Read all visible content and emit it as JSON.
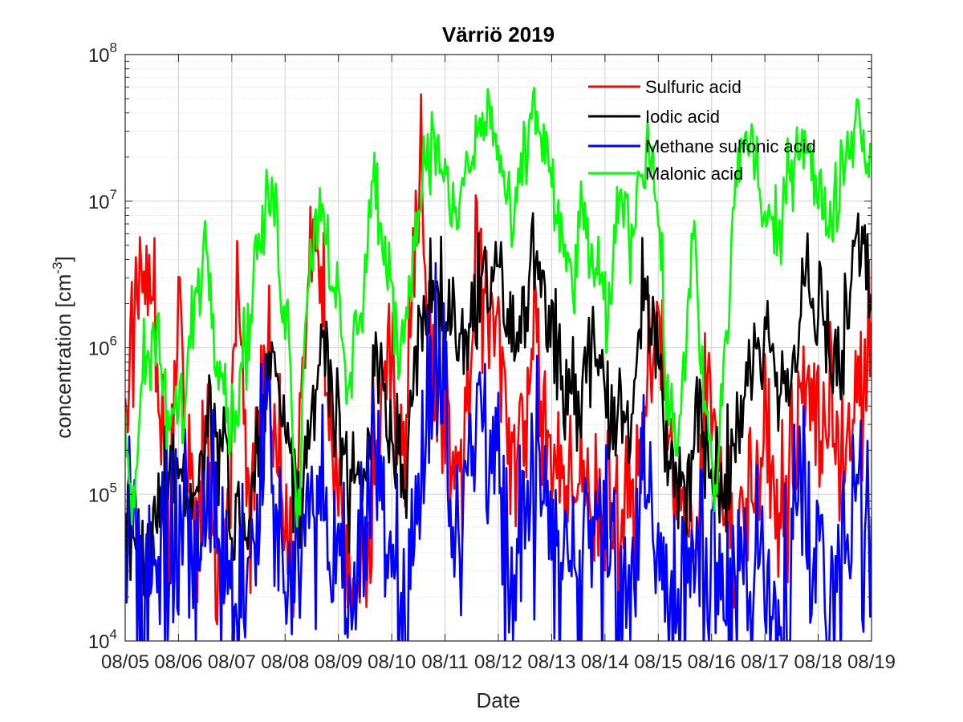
{
  "chart_data": {
    "type": "line",
    "title": "Värriö 2019",
    "xlabel": "Date",
    "ylabel": "concentration [cm",
    "ylabel_sup": "-3",
    "ylabel_end": "]",
    "yscale": "log",
    "ylim": [
      10000,
      100000000
    ],
    "xlim": [
      "08/05",
      "08/19"
    ],
    "x_ticks": [
      "08/05",
      "08/06",
      "08/07",
      "08/08",
      "08/09",
      "08/10",
      "08/11",
      "08/12",
      "08/13",
      "08/14",
      "08/15",
      "08/16",
      "08/17",
      "08/18",
      "08/19"
    ],
    "y_ticks": [
      {
        "base": "10",
        "exp": "4"
      },
      {
        "base": "10",
        "exp": "5"
      },
      {
        "base": "10",
        "exp": "6"
      },
      {
        "base": "10",
        "exp": "7"
      },
      {
        "base": "10",
        "exp": "8"
      }
    ],
    "grid": true,
    "legend_position": "top-right",
    "x_resolution_days": 0.025,
    "series": [
      {
        "name": "Sulfuric acid",
        "color": "#ff0000",
        "noise": 0.28,
        "anchors": [
          [
            "08/05 00:00",
            300000
          ],
          [
            "08/05 04:00",
            1500000
          ],
          [
            "08/05 08:00",
            4500000
          ],
          [
            "08/05 12:00",
            3000000
          ],
          [
            "08/05 16:00",
            400000
          ],
          [
            "08/05 20:00",
            80000
          ],
          [
            "08/06 00:00",
            2000000
          ],
          [
            "08/06 04:00",
            150000
          ],
          [
            "08/06 08:00",
            60000
          ],
          [
            "08/06 12:00",
            200000
          ],
          [
            "08/06 16:00",
            50000
          ],
          [
            "08/06 20:00",
            30000
          ],
          [
            "08/07 00:00",
            200000
          ],
          [
            "08/07 02:00",
            2500000
          ],
          [
            "08/07 04:00",
            1200000
          ],
          [
            "08/07 08:00",
            50000
          ],
          [
            "08/07 12:00",
            400000
          ],
          [
            "08/07 16:00",
            800000
          ],
          [
            "08/07 20:00",
            200000
          ],
          [
            "08/08 00:00",
            80000
          ],
          [
            "08/08 04:00",
            30000
          ],
          [
            "08/08 08:00",
            1000000
          ],
          [
            "08/08 12:00",
            4500000
          ],
          [
            "08/08 16:00",
            2000000
          ],
          [
            "08/08 20:00",
            300000
          ],
          [
            "08/09 00:00",
            100000
          ],
          [
            "08/09 06:00",
            20000
          ],
          [
            "08/09 12:00",
            40000
          ],
          [
            "08/09 18:00",
            300000
          ],
          [
            "08/10 00:00",
            500000
          ],
          [
            "08/10 06:00",
            200000
          ],
          [
            "08/10 10:00",
            3000000
          ],
          [
            "08/10 13:00",
            25000000
          ],
          [
            "08/10 16:00",
            2000000
          ],
          [
            "08/10 20:00",
            500000
          ],
          [
            "08/11 00:00",
            400000
          ],
          [
            "08/11 06:00",
            100000
          ],
          [
            "08/11 10:00",
            600000
          ],
          [
            "08/11 14:00",
            8000000
          ],
          [
            "08/11 18:00",
            1500000
          ],
          [
            "08/12 00:00",
            1200000
          ],
          [
            "08/12 04:00",
            300000
          ],
          [
            "08/12 10:00",
            250000
          ],
          [
            "08/12 16:00",
            1500000
          ],
          [
            "08/12 22:00",
            200000
          ],
          [
            "08/13 06:00",
            80000
          ],
          [
            "08/13 14:00",
            150000
          ],
          [
            "08/13 22:00",
            80000
          ],
          [
            "08/14 06:00",
            60000
          ],
          [
            "08/14 14:00",
            100000
          ],
          [
            "08/14 20:00",
            1000000
          ],
          [
            "08/15 00:00",
            2000000
          ],
          [
            "08/15 04:00",
            300000
          ],
          [
            "08/15 10:00",
            80000
          ],
          [
            "08/15 16:00",
            30000
          ],
          [
            "08/15 22:00",
            500000
          ],
          [
            "08/16 04:00",
            200000
          ],
          [
            "08/16 10:00",
            40000
          ],
          [
            "08/16 16:00",
            100000
          ],
          [
            "08/17 00:00",
            200000
          ],
          [
            "08/17 06:00",
            80000
          ],
          [
            "08/17 12:00",
            150000
          ],
          [
            "08/17 18:00",
            500000
          ],
          [
            "08/18 00:00",
            350000
          ],
          [
            "08/18 06:00",
            300000
          ],
          [
            "08/18 12:00",
            250000
          ],
          [
            "08/18 18:00",
            400000
          ],
          [
            "08/19 00:00",
            1000000
          ]
        ]
      },
      {
        "name": "Iodic acid",
        "color": "#000000",
        "noise": 0.2,
        "anchors": [
          [
            "08/05 00:00",
            80000
          ],
          [
            "08/05 08:00",
            30000
          ],
          [
            "08/05 16:00",
            100000
          ],
          [
            "08/06 00:00",
            150000
          ],
          [
            "08/06 08:00",
            80000
          ],
          [
            "08/06 14:00",
            400000
          ],
          [
            "08/06 20:00",
            200000
          ],
          [
            "08/07 02:00",
            50000
          ],
          [
            "08/07 08:00",
            80000
          ],
          [
            "08/07 14:00",
            300000
          ],
          [
            "08/07 18:00",
            1000000
          ],
          [
            "08/08 00:00",
            300000
          ],
          [
            "08/08 06:00",
            80000
          ],
          [
            "08/08 14:00",
            600000
          ],
          [
            "08/08 18:00",
            900000
          ],
          [
            "08/09 00:00",
            300000
          ],
          [
            "08/09 06:00",
            100000
          ],
          [
            "08/09 12:00",
            200000
          ],
          [
            "08/09 18:00",
            900000
          ],
          [
            "08/10 00:00",
            300000
          ],
          [
            "08/10 06:00",
            150000
          ],
          [
            "08/10 12:00",
            800000
          ],
          [
            "08/10 18:00",
            2200000
          ],
          [
            "08/11 00:00",
            1800000
          ],
          [
            "08/11 06:00",
            1300000
          ],
          [
            "08/11 12:00",
            1800000
          ],
          [
            "08/11 18:00",
            4000000
          ],
          [
            "08/12 00:00",
            3000000
          ],
          [
            "08/12 04:00",
            1500000
          ],
          [
            "08/12 10:00",
            1400000
          ],
          [
            "08/12 16:00",
            3500000
          ],
          [
            "08/13 00:00",
            1500000
          ],
          [
            "08/13 06:00",
            500000
          ],
          [
            "08/13 12:00",
            400000
          ],
          [
            "08/13 18:00",
            1000000
          ],
          [
            "08/14 00:00",
            600000
          ],
          [
            "08/14 06:00",
            300000
          ],
          [
            "08/14 12:00",
            500000
          ],
          [
            "08/14 18:00",
            2500000
          ],
          [
            "08/15 00:00",
            1000000
          ],
          [
            "08/15 06:00",
            150000
          ],
          [
            "08/15 12:00",
            100000
          ],
          [
            "08/15 18:00",
            300000
          ],
          [
            "08/16 00:00",
            150000
          ],
          [
            "08/16 06:00",
            100000
          ],
          [
            "08/16 12:00",
            300000
          ],
          [
            "08/16 18:00",
            1400000
          ],
          [
            "08/17 00:00",
            900000
          ],
          [
            "08/17 06:00",
            400000
          ],
          [
            "08/17 12:00",
            800000
          ],
          [
            "08/17 18:00",
            3000000
          ],
          [
            "08/18 00:00",
            1500000
          ],
          [
            "08/18 06:00",
            800000
          ],
          [
            "08/18 12:00",
            1200000
          ],
          [
            "08/18 18:00",
            4000000
          ],
          [
            "08/19 00:00",
            2000000
          ]
        ]
      },
      {
        "name": "Methane sulfonic acid",
        "color": "#0000ff",
        "noise": 0.38,
        "anchors": [
          [
            "08/05 00:00",
            60000
          ],
          [
            "08/05 08:00",
            20000
          ],
          [
            "08/05 16:00",
            30000
          ],
          [
            "08/06 00:00",
            40000
          ],
          [
            "08/06 08:00",
            30000
          ],
          [
            "08/06 14:00",
            100000
          ],
          [
            "08/06 20:00",
            40000
          ],
          [
            "08/07 04:00",
            15000
          ],
          [
            "08/07 10:00",
            60000
          ],
          [
            "08/07 16:00",
            250000
          ],
          [
            "08/07 22:00",
            60000
          ],
          [
            "08/08 04:00",
            20000
          ],
          [
            "08/08 10:00",
            80000
          ],
          [
            "08/08 16:00",
            150000
          ],
          [
            "08/08 22:00",
            40000
          ],
          [
            "08/09 04:00",
            20000
          ],
          [
            "08/09 10:00",
            40000
          ],
          [
            "08/09 18:00",
            150000
          ],
          [
            "08/10 00:00",
            40000
          ],
          [
            "08/10 06:00",
            20000
          ],
          [
            "08/10 12:00",
            100000
          ],
          [
            "08/10 18:00",
            900000
          ],
          [
            "08/11 00:00",
            300000
          ],
          [
            "08/11 06:00",
            60000
          ],
          [
            "08/11 12:00",
            150000
          ],
          [
            "08/11 18:00",
            500000
          ],
          [
            "08/12 00:00",
            200000
          ],
          [
            "08/12 06:00",
            30000
          ],
          [
            "08/12 12:00",
            60000
          ],
          [
            "08/12 18:00",
            100000
          ],
          [
            "08/13 00:00",
            60000
          ],
          [
            "08/13 08:00",
            20000
          ],
          [
            "08/13 16:00",
            80000
          ],
          [
            "08/14 00:00",
            40000
          ],
          [
            "08/14 08:00",
            15000
          ],
          [
            "08/14 16:00",
            80000
          ],
          [
            "08/15 00:00",
            40000
          ],
          [
            "08/15 08:00",
            15000
          ],
          [
            "08/15 16:00",
            60000
          ],
          [
            "08/16 00:00",
            20000
          ],
          [
            "08/16 08:00",
            15000
          ],
          [
            "08/16 16:00",
            40000
          ],
          [
            "08/17 00:00",
            30000
          ],
          [
            "08/17 08:00",
            20000
          ],
          [
            "08/17 16:00",
            100000
          ],
          [
            "08/18 00:00",
            40000
          ],
          [
            "08/18 08:00",
            20000
          ],
          [
            "08/18 16:00",
            150000
          ],
          [
            "08/19 00:00",
            40000
          ]
        ]
      },
      {
        "name": "Malonic acid",
        "color": "#00ff00",
        "noise": 0.14,
        "anchors": [
          [
            "08/05 00:00",
            200000
          ],
          [
            "08/05 04:00",
            100000
          ],
          [
            "08/05 08:00",
            800000
          ],
          [
            "08/05 14:00",
            1000000
          ],
          [
            "08/05 20:00",
            300000
          ],
          [
            "08/06 02:00",
            400000
          ],
          [
            "08/06 08:00",
            2500000
          ],
          [
            "08/06 12:00",
            5000000
          ],
          [
            "08/06 18:00",
            1000000
          ],
          [
            "08/07 00:00",
            300000
          ],
          [
            "08/07 06:00",
            1000000
          ],
          [
            "08/07 12:00",
            5000000
          ],
          [
            "08/07 18:00",
            11000000
          ],
          [
            "08/08 00:00",
            2000000
          ],
          [
            "08/08 06:00",
            100000
          ],
          [
            "08/08 10:00",
            3000000
          ],
          [
            "08/08 16:00",
            10000000
          ],
          [
            "08/08 22:00",
            3000000
          ],
          [
            "08/09 04:00",
            500000
          ],
          [
            "08/09 10:00",
            2000000
          ],
          [
            "08/09 16:00",
            14000000
          ],
          [
            "08/09 22:00",
            3000000
          ],
          [
            "08/10 04:00",
            1000000
          ],
          [
            "08/10 10:00",
            5000000
          ],
          [
            "08/10 16:00",
            25000000
          ],
          [
            "08/10 22:00",
            20000000
          ],
          [
            "08/11 04:00",
            7000000
          ],
          [
            "08/11 10:00",
            16000000
          ],
          [
            "08/11 16:00",
            30000000
          ],
          [
            "08/11 20:00",
            40000000
          ],
          [
            "08/12 02:00",
            15000000
          ],
          [
            "08/12 06:00",
            6000000
          ],
          [
            "08/12 12:00",
            20000000
          ],
          [
            "08/12 16:00",
            45000000
          ],
          [
            "08/12 22:00",
            20000000
          ],
          [
            "08/13 04:00",
            5000000
          ],
          [
            "08/13 10:00",
            3000000
          ],
          [
            "08/13 14:00",
            8000000
          ],
          [
            "08/13 20:00",
            3000000
          ],
          [
            "08/14 02:00",
            1500000
          ],
          [
            "08/14 06:00",
            12000000
          ],
          [
            "08/14 12:00",
            6000000
          ],
          [
            "08/14 16:00",
            18000000
          ],
          [
            "08/14 20:00",
            25000000
          ],
          [
            "08/15 00:00",
            8000000
          ],
          [
            "08/15 04:00",
            500000
          ],
          [
            "08/15 08:00",
            200000
          ],
          [
            "08/15 12:00",
            1000000
          ],
          [
            "08/15 16:00",
            5000000
          ],
          [
            "08/15 20:00",
            500000
          ],
          [
            "08/16 02:00",
            100000
          ],
          [
            "08/16 06:00",
            1000000
          ],
          [
            "08/16 12:00",
            20000000
          ],
          [
            "08/16 18:00",
            25000000
          ],
          [
            "08/17 00:00",
            8000000
          ],
          [
            "08/17 06:00",
            5000000
          ],
          [
            "08/17 12:00",
            20000000
          ],
          [
            "08/17 18:00",
            30000000
          ],
          [
            "08/18 00:00",
            10000000
          ],
          [
            "08/18 06:00",
            8000000
          ],
          [
            "08/18 12:00",
            20000000
          ],
          [
            "08/18 18:00",
            40000000
          ],
          [
            "08/19 00:00",
            15000000
          ]
        ]
      }
    ]
  }
}
